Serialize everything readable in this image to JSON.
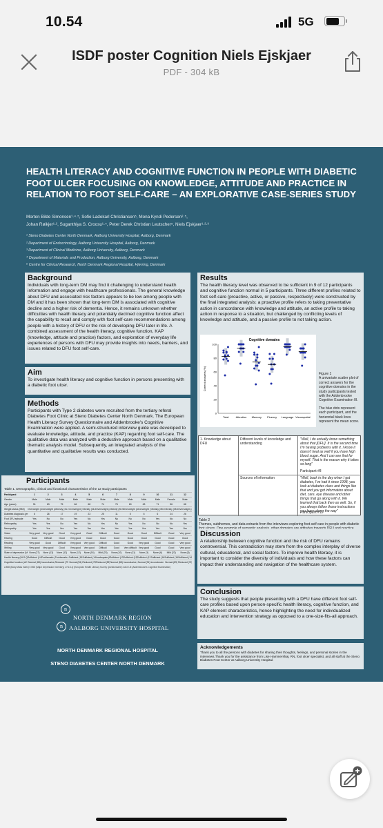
{
  "status_bar": {
    "time": "10.54",
    "network": "5G"
  },
  "header": {
    "title": "ISDF poster Cognition Niels Ejskjaer",
    "subtitle": "PDF - 304 kB"
  },
  "icons": {
    "close": "close-icon",
    "share": "share-icon",
    "annotate": "markup-pen-icon"
  },
  "poster": {
    "title": "HEALTH LITERACY AND COGNITIVE FUNCTION IN PEOPLE WITH DIABETIC FOOT ULCER FOCUSING ON KNOWLEDGE, ATTITUDE AND PRACTICE IN RELATION TO FOOT SELF-CARE – AN EXPLORATIVE CASE-SERIES STUDY",
    "authors_line1": "Morten Bilde Simonsen¹·⁴·⁵, Sofie Ladekarl Christiansen⁵, Mona Kyndi Pedersen²·⁵,",
    "authors_line2": "Johan Røikjer¹·², Suganthiya S. Croosu¹·⁴, Peter Derek Christian Leutscher⁵, Niels Ejskjaer¹·²·³",
    "affiliations": [
      "¹ Steno Diabetes Center North Denmark, Aalborg University Hospital, Aalborg, Denmark",
      "² Department of Endocrinology, Aalborg University Hospital, Aalborg, Denmark",
      "³ Department of Clinical Medicine, Aalborg University, Aalborg, Denmark",
      "⁴ Department of Materials and Production, Aalborg University, Aalborg, Denmark",
      "⁵ Centre for Clinical Research, North Denmark Regional Hospital, Hjørring, Denmark"
    ],
    "background": {
      "heading": "Background",
      "text": "Individuals with long-term DM may find it challenging to understand health information and engage with healthcare professionals. The general knowledge about DFU and associated risk factors appears to be low among people with DM and it has been shown that long-term DM is associated with cognitive decline and a higher risk of dementia. Hence, it remains unknown whether difficulties with health literacy and potentially declined cognitive function affect the capability to recall and comply with foot self-care recommendations among people with a history of DFU or the risk of developing DFU later in life. A combined assessment of the health literacy, cognitive function, KAP (knowledge, attitude and practice) factors, and exploration of everyday life experiences of persons with DFU may provide insights into needs, barriers, and issues related to DFU foot self-care."
    },
    "aim": {
      "heading": "Aim",
      "text": "To investigate health literacy and cognitive function in persons presenting with a diabetic foot ulcer."
    },
    "methods": {
      "heading": "Methods",
      "text": "Participants with Type 2 diabetes were recruited from the tertiary referal Diabetes Foot Clinic at Steno Diabetes Center North Denmark. The European Health Literacy Survey Questionnaire and Addenbrooke's Cognitive Examination were applied. A semi-structured interview guide was developed to evaluate knowledge, attitude, and practice (KAP) regarding foot self-care. The qualitative data was analyzed with a deductive approach based on a qualitative thematic analysis model. Subsequently, an integrated analysis of the quantitative and qualitative results was conducted."
    },
    "participants": {
      "heading": "Participants",
      "table_caption": "Table 1. Demographic, clinical and functional characteristics of the 12 study participants",
      "columns": [
        "Participant",
        "1",
        "2",
        "3",
        "4",
        "5",
        "6",
        "7",
        "8",
        "9",
        "10",
        "11",
        "12"
      ],
      "rows": [
        [
          "Gender",
          "Male",
          "Male",
          "Male",
          "Male",
          "Male",
          "Male",
          "Male",
          "Male",
          "Male",
          "Male",
          "Female",
          "Male"
        ],
        [
          "Age (years)",
          "51",
          "63",
          "75",
          "66",
          "68",
          "74",
          "76",
          "60",
          "63",
          "71",
          "56",
          "68"
        ],
        [
          "Weight status (BMI)",
          "Overweight (27.4)",
          "Overweight (27.8)",
          "Obesity (31.1)",
          "Overweight (27.1)",
          "Obesity (46.4)",
          "Overweight (25.5)",
          "Obesity (30.5)",
          "Overweight (28.4)",
          "Overweight (28.5)",
          "Obesity (35.6)",
          "Obesity (35.2)",
          "Overweight (26.7)"
        ],
        [
          "Diabetes diagnosis (years)",
          "6",
          "26",
          "17",
          "19",
          "23",
          "25",
          "11",
          "5",
          "6",
          "6",
          "24",
          "26"
        ],
        [
          "Foot DFU episode",
          "Yes",
          "No",
          "No",
          "Yes",
          "No",
          "Yes",
          "No",
          "No",
          "No",
          "Yes",
          "No",
          "No"
        ],
        [
          "Retinopathy",
          "Yes",
          "Yes",
          "No",
          "Yes",
          "No",
          "Yes",
          "No",
          "Yes",
          "No",
          "No",
          "No",
          "Yes"
        ],
        [
          "Neuropathy",
          "Yes",
          "Yes",
          "Yes",
          "Yes",
          "Yes",
          "Yes",
          "Yes",
          "Yes",
          "Yes",
          "Yes",
          "Yes",
          "Yes"
        ],
        [
          "Vision",
          "Very good",
          "Very good",
          "Good",
          "Very good",
          "Good",
          "Difficult",
          "Good",
          "Good",
          "Good",
          "Difficult",
          "Good",
          "Very good"
        ],
        [
          "Hearing",
          "Good",
          "Difficult",
          "Good",
          "Very good",
          "Good",
          "Good",
          "Good",
          "Good",
          "Good",
          "Good",
          "Good",
          "Good"
        ],
        [
          "Reading",
          "Very good",
          "Good",
          "Difficult",
          "Very good",
          "Very good",
          "Difficult",
          "Good",
          "Good",
          "Very good",
          "Good",
          "Good",
          "Very good"
        ],
        [
          "Writing",
          "Very good",
          "Very good",
          "Good",
          "Very good",
          "Very good",
          "Difficult",
          "Good",
          "Very difficult",
          "Very good",
          "Good",
          "Good",
          "Very good"
        ],
        [
          "State of depression (MDI score)",
          "None (27)",
          "None (13)",
          "None (12)",
          "None (12)",
          "None (16)",
          "Mild (23)",
          "None (10)",
          "None (11)",
          "None (3)",
          "None (6)",
          "Mild (22)",
          "None (8)"
        ],
        [
          "Health literacy (HLS-Q score)",
          "Sufficient (14)",
          "Problematic (11)",
          "Problematic (10)",
          "Sufficient (15)",
          "Sufficient (14)",
          "Inadequate (8)",
          "Sufficient (13)",
          "Sufficient (15)",
          "Sufficient (13)",
          "Sufficient (16)",
          "Sufficient (16)",
          "Sufficient (14)"
        ],
        [
          "Cognitive function (ACE-III score)",
          "Normal (88)",
          "Inconclusive (82)",
          "Reduced (79)",
          "Normal (96)",
          "Reduced (78)",
          "Reduced (55)",
          "Normal (88)",
          "Inconclusive (84)",
          "Normal (91)",
          "Inconclusive (84)",
          "Normal (89)",
          "Reduced (76)"
        ]
      ],
      "table_footnote": "a BMI (Body Mass Index) b MDI (Major Depression Inventory) c HLS-Q (European Health Literacy Survey Questionnaire) d ACE-III (Addenbrooke's Cognitive Examination)"
    },
    "logos": {
      "region": "NORTH DENMARK REGION",
      "hospital": "AALBORG UNIVERSITY HOSPITAL",
      "mark": "n"
    },
    "footer_lines": [
      "NORTH DENMARK REGIONAL HOSPITAL",
      "STENO DIABETES CENTER NORTH DENMARK"
    ],
    "results": {
      "heading": "Results",
      "text": "The health literacy level was observed to be sufficient in 9 of 12 participants and cognitive function normal in 5 participants. Three different profiles related to foot self-care (proactive, active, or passive, respectively) were constructed by the final integrated analysis: a proactive profile refers to taking preventative action in concordance with knowledge and attitude, an active profile to taking action in response to a situation, but challenged by conflicting levels of knowledge and attitude, and a passive profile to not taking action.",
      "figure_caption_title": "Figure 1",
      "figure_caption": "A univariate scatter plot of correct answers for the cognitive domains in the study participants tested with the Addenbrooke Cognitive Examination III.",
      "figure_caption_2": "The blue dots represent each participant, and the horizontal black lines represent the mean score."
    },
    "chart_data": {
      "type": "scatter",
      "title": "Cognitive domains",
      "ylabel": "Correct answers (%)",
      "categories": [
        "Total",
        "Attention",
        "Memory",
        "Fluency",
        "Language",
        "Visuospatial"
      ],
      "ylim": [
        0,
        100
      ],
      "yticks": [
        0,
        20,
        40,
        60,
        80,
        100
      ],
      "series": [
        {
          "values_by_category": [
            [
              88,
              82,
              79,
              96,
              78,
              55,
              88,
              84,
              91,
              84,
              89,
              76
            ],
            [
              100,
              100,
              94,
              100,
              89,
              72,
              100,
              94,
              100,
              94,
              100,
              89
            ],
            [
              85,
              69,
              69,
              96,
              65,
              42,
              81,
              73,
              88,
              77,
              85,
              62
            ],
            [
              79,
              64,
              64,
              86,
              57,
              43,
              79,
              71,
              86,
              71,
              79,
              71
            ],
            [
              100,
              100,
              96,
              100,
              96,
              85,
              100,
              96,
              100,
              96,
              100,
              92
            ],
            [
              94,
              94,
              88,
              100,
              88,
              69,
              94,
              88,
              94,
              88,
              94,
              81
            ]
          ]
        }
      ],
      "means": [
        82.5,
        94.3,
        74.3,
        70.8,
        96.8,
        89.4
      ]
    },
    "table2": {
      "rows": [
        {
          "theme": "1. Knowledge about DFU",
          "subtheme": "Different levels of knowledge and understanding",
          "quote": "\"Well, I do actually know something about that [DFU]. It is the second time I'm having problems with it. I know it doesn't heal as well if you have high blood sugar. And I can see that for myself. That is the reason why it takes so long\"",
          "participant": "Participant #8"
        },
        {
          "theme": "",
          "subtheme": "Sources of information",
          "quote": "\"Well, back in the day when I got diabetes, I've had it since 1998, you look at diabetes class and things like that and you got information about diet, care, eye disease and other things that go along with it. We learned that back then as well. So, if you always follow those instructions you learn along the way\"",
          "participant": "Participant #11"
        }
      ],
      "caption_title": "Table 2",
      "caption": "Themes, subthemes, and data extracts from the interviews exploring foot-self care in people with diabetic foot ulcers. One example of semantic analysis, other domains are attitudes towards DFU and practice related to self-care."
    },
    "discussion": {
      "heading": "Discussion",
      "text": "A relationship between cognitive function and the risk of DFU remains controversial. This contradiction may stem from the complex interplay of diverse cultural, educational, and social factors. To improve health literacy, it is important to consider the diversity of individuals and how these factors can impact their understanding and navigation of the healthcare system."
    },
    "conclusion": {
      "heading": "Conclusion",
      "text": "The study suggests that people presenting with a DFU have different foot self-care profiles based upon person-specific health literacy, cognitive function, and KAP element characteristics, hence highlighting the need for individualized education and intervention strategy as opposed to a one-size-fits-all approach."
    },
    "acknowledgements": {
      "heading": "Acknowledgements",
      "text": "Thank you to all the persons with diabetes for sharing their thoughts, feelings, and personal stories in the interviews.Thank you for the assistance from Lise Hammershøj, RN, foot ulcer specialist, and all staff at the Steno Diabetes Foot Center at Aalborg University Hospital."
    }
  },
  "colors": {
    "poster_bg": "#2d5f75",
    "panel_bg": "#dfe6e9",
    "dot": "#1f2fa8"
  }
}
